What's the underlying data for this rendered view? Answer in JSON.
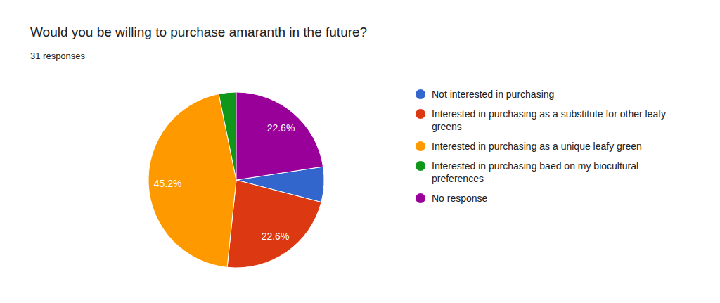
{
  "chart_data": {
    "type": "pie",
    "title": "Would you be willing to purchase amaranth in the future?",
    "subtitle": "31 responses",
    "categories": [
      "Not interested in purchasing",
      "Interested in purchasing as a substitute for other leafy greens",
      "Interested in purchasing as a unique leafy green",
      "Interested in purchasing baed on my biocultural preferences",
      "No response"
    ],
    "values": [
      6.5,
      22.6,
      45.2,
      3.2,
      22.6
    ],
    "value_labels": [
      null,
      "22.6%",
      "45.2%",
      null,
      "22.6%"
    ],
    "colors": [
      "#3366cc",
      "#dc3912",
      "#ff9900",
      "#109618",
      "#990099"
    ],
    "data_labels": true,
    "legend": "right"
  }
}
